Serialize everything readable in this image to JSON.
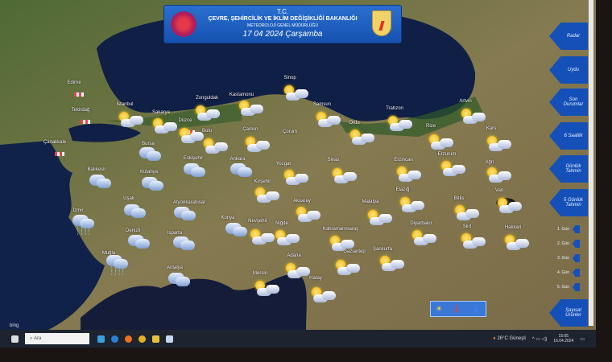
{
  "header": {
    "line1": "T.C.",
    "line2": "ÇEVRE, ŞEHİRCİLİK VE İKLİM DEĞİŞİKLİĞİ BAKANLIĞI",
    "line3": "METEOROLOJİ GENEL MÜDÜRLÜĞÜ",
    "date": "17 04 2024 Çarşamba"
  },
  "nav": [
    {
      "label": "Radar"
    },
    {
      "label": "Uydu"
    },
    {
      "label": "Son Durumlar"
    },
    {
      "label": "6 Saatlik"
    },
    {
      "label": "Günlük Tahmin"
    },
    {
      "label": "5 Günlük Tahmin"
    },
    {
      "label": "Sayısal Ürünler"
    }
  ],
  "days": [
    "1. Gün",
    "2. Gün",
    "3. Gün",
    "4. Gün",
    "5. Gün"
  ],
  "legend_icons": [
    "sun-icon",
    "thermometer-icon",
    "thermometer-icon"
  ],
  "cities": [
    {
      "name": "Edirne",
      "wx": "none"
    },
    {
      "name": "Tekirdağ",
      "wx": "none"
    },
    {
      "name": "Çanakkale",
      "wx": "none"
    },
    {
      "name": "İstanbul",
      "wx": "partly-cloudy"
    },
    {
      "name": "Sakarya",
      "wx": "partly-cloudy"
    },
    {
      "name": "Düzce",
      "wx": "none"
    },
    {
      "name": "Zonguldak",
      "wx": "partly-cloudy"
    },
    {
      "name": "Kastamonu",
      "wx": "partly-cloudy"
    },
    {
      "name": "Sinop",
      "wx": "partly-cloudy"
    },
    {
      "name": "Samsun",
      "wx": "partly-cloudy"
    },
    {
      "name": "Ordu",
      "wx": "partly-cloudy"
    },
    {
      "name": "Trabzon",
      "wx": "partly-cloudy"
    },
    {
      "name": "Rize",
      "wx": "partly-cloudy"
    },
    {
      "name": "Artvin",
      "wx": "partly-cloudy"
    },
    {
      "name": "Kars",
      "wx": "partly-cloudy"
    },
    {
      "name": "Bolu",
      "wx": "partly-cloudy"
    },
    {
      "name": "Çankırı",
      "wx": "partly-cloudy"
    },
    {
      "name": "Çorum",
      "wx": "partly-cloudy"
    },
    {
      "name": "Bursa",
      "wx": "cloudy"
    },
    {
      "name": "Eskişehir",
      "wx": "cloudy"
    },
    {
      "name": "Ankara",
      "wx": "cloudy"
    },
    {
      "name": "Balıkesir",
      "wx": "cloudy"
    },
    {
      "name": "Kütahya",
      "wx": "cloudy"
    },
    {
      "name": "Yozgat",
      "wx": "partly-cloudy"
    },
    {
      "name": "Sivas",
      "wx": "partly-cloudy"
    },
    {
      "name": "Erzincan",
      "wx": "partly-cloudy"
    },
    {
      "name": "Erzurum",
      "wx": "partly-cloudy"
    },
    {
      "name": "Ağrı",
      "wx": "partly-cloudy"
    },
    {
      "name": "Kırşehir",
      "wx": "partly-cloudy"
    },
    {
      "name": "Aksaray",
      "wx": "partly-cloudy"
    },
    {
      "name": "Malatya",
      "wx": "partly-cloudy"
    },
    {
      "name": "Elazığ",
      "wx": "partly-cloudy"
    },
    {
      "name": "Bitlis",
      "wx": "partly-cloudy"
    },
    {
      "name": "Van",
      "wx": "partly-cloudy"
    },
    {
      "name": "Uşak",
      "wx": "cloudy"
    },
    {
      "name": "Afyonkarahisar",
      "wx": "cloudy"
    },
    {
      "name": "İzmir",
      "wx": "rain"
    },
    {
      "name": "Konya",
      "wx": "cloudy"
    },
    {
      "name": "Nevşehir",
      "wx": "partly-cloudy"
    },
    {
      "name": "Niğde",
      "wx": "partly-cloudy"
    },
    {
      "name": "Kahramanmaraş",
      "wx": "partly-cloudy"
    },
    {
      "name": "Diyarbakır",
      "wx": "partly-cloudy"
    },
    {
      "name": "Siirt",
      "wx": "partly-cloudy"
    },
    {
      "name": "Hakkari",
      "wx": "partly-cloudy"
    },
    {
      "name": "Denizli",
      "wx": "cloudy"
    },
    {
      "name": "Isparta",
      "wx": "cloudy"
    },
    {
      "name": "Muğla",
      "wx": "rain"
    },
    {
      "name": "Gaziantep",
      "wx": "partly-cloudy"
    },
    {
      "name": "Şanlıurfa",
      "wx": "partly-cloudy"
    },
    {
      "name": "Adana",
      "wx": "partly-cloudy"
    },
    {
      "name": "Antalya",
      "wx": "cloudy"
    },
    {
      "name": "Mersin",
      "wx": "partly-cloudy"
    },
    {
      "name": "Hatay",
      "wx": "partly-cloudy"
    }
  ],
  "taskbar": {
    "search_placeholder": "Ara",
    "weather": "26°C Güneşli",
    "time": "15:05",
    "date": "16.04.2024",
    "bing": "bing"
  },
  "colors": {
    "banner": "#1a5cc0",
    "nav": "#1550b8",
    "sea": "#0f1f45",
    "land": "#7a7048"
  }
}
